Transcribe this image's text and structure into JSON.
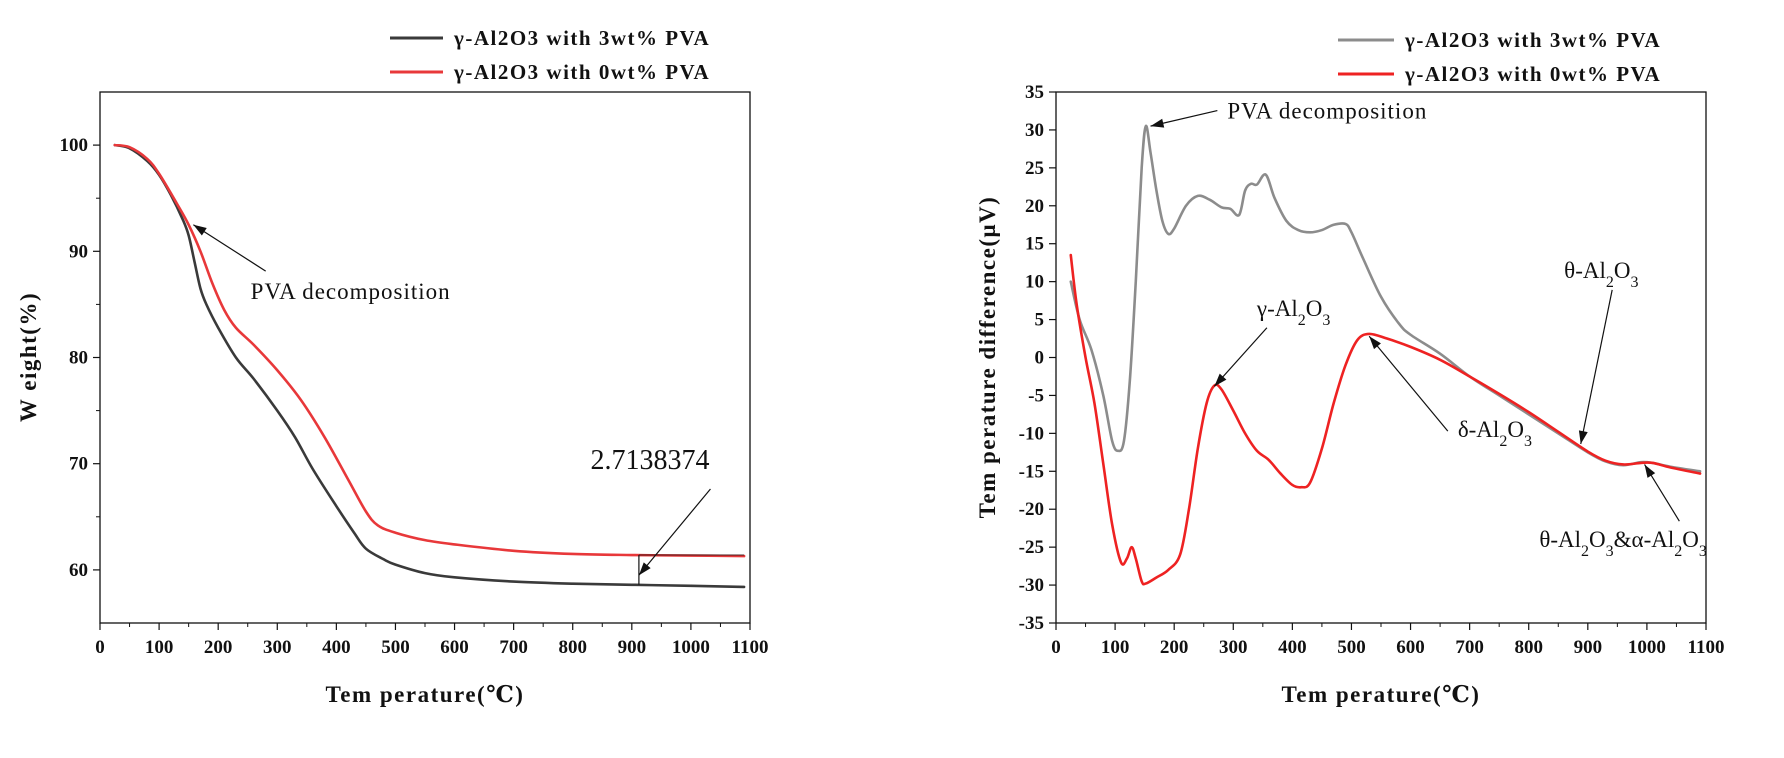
{
  "chart_data": [
    {
      "type": "line",
      "xlabel": "Tem perature(℃)",
      "ylabel": "W eight(%)",
      "xlim": [
        0,
        1100
      ],
      "ylim": [
        55,
        105
      ],
      "xticks": [
        0,
        100,
        200,
        300,
        400,
        500,
        600,
        700,
        800,
        900,
        1000,
        1100
      ],
      "yticks": [
        60,
        70,
        80,
        90,
        100
      ],
      "legend_position": "top-right (outside plot)",
      "grid": false,
      "series": [
        {
          "name": "γ-Al2O3 with 3wt% PVA",
          "color": "#3a3a3a",
          "points": [
            [
              25,
              100
            ],
            [
              50,
              99.7
            ],
            [
              80,
              98.5
            ],
            [
              100,
              97.2
            ],
            [
              120,
              95.3
            ],
            [
              140,
              93
            ],
            [
              150,
              91.5
            ],
            [
              160,
              89
            ],
            [
              170,
              86.5
            ],
            [
              180,
              85
            ],
            [
              200,
              82.8
            ],
            [
              230,
              80
            ],
            [
              260,
              78
            ],
            [
              300,
              75
            ],
            [
              330,
              72.5
            ],
            [
              360,
              69.5
            ],
            [
              400,
              66
            ],
            [
              430,
              63.5
            ],
            [
              450,
              62
            ],
            [
              480,
              61
            ],
            [
              500,
              60.5
            ],
            [
              550,
              59.7
            ],
            [
              600,
              59.3
            ],
            [
              700,
              58.9
            ],
            [
              800,
              58.7
            ],
            [
              900,
              58.6
            ],
            [
              1000,
              58.5
            ],
            [
              1090,
              58.4
            ]
          ]
        },
        {
          "name": "γ-Al2O3 with 0wt% PVA",
          "color": "#e8383a",
          "points": [
            [
              25,
              100
            ],
            [
              50,
              99.8
            ],
            [
              80,
              98.7
            ],
            [
              100,
              97.3
            ],
            [
              130,
              94.5
            ],
            [
              150,
              92.5
            ],
            [
              170,
              90
            ],
            [
              190,
              87
            ],
            [
              210,
              84.5
            ],
            [
              230,
              82.8
            ],
            [
              260,
              81.2
            ],
            [
              300,
              78.8
            ],
            [
              340,
              76
            ],
            [
              380,
              72.5
            ],
            [
              420,
              68.5
            ],
            [
              450,
              65.5
            ],
            [
              470,
              64.2
            ],
            [
              500,
              63.5
            ],
            [
              550,
              62.8
            ],
            [
              600,
              62.4
            ],
            [
              700,
              61.8
            ],
            [
              800,
              61.5
            ],
            [
              900,
              61.4
            ],
            [
              1000,
              61.35
            ],
            [
              1090,
              61.3
            ]
          ]
        }
      ],
      "annotations": [
        {
          "text": "PVA decomposition",
          "x": 255,
          "y": 85.5,
          "arrow_to": [
            158,
            92.5
          ]
        },
        {
          "text": "2.7138374",
          "x": 830,
          "y": 69.5,
          "arrow_to": [
            912,
            59.5
          ],
          "bracket_x": 912,
          "bracket_y": [
            58.6,
            61.4
          ]
        }
      ]
    },
    {
      "type": "line",
      "xlabel": "Tem perature(℃)",
      "ylabel": "Tem perature difference(μV)",
      "xlim": [
        0,
        1100
      ],
      "ylim": [
        -35,
        35
      ],
      "xticks": [
        0,
        100,
        200,
        300,
        400,
        500,
        600,
        700,
        800,
        900,
        1000,
        1100
      ],
      "yticks": [
        -35,
        -30,
        -25,
        -20,
        -15,
        -10,
        -5,
        0,
        5,
        10,
        15,
        20,
        25,
        30,
        35
      ],
      "legend_position": "top-right (outside plot)",
      "grid": false,
      "series": [
        {
          "name": "γ-Al2O3 with 3wt% PVA",
          "color": "#8c8c8c",
          "points": [
            [
              25,
              10
            ],
            [
              40,
              5
            ],
            [
              60,
              1
            ],
            [
              80,
              -5
            ],
            [
              95,
              -11
            ],
            [
              105,
              -12.3
            ],
            [
              115,
              -11
            ],
            [
              125,
              -3
            ],
            [
              135,
              10
            ],
            [
              145,
              25
            ],
            [
              152,
              30.5
            ],
            [
              160,
              27
            ],
            [
              170,
              22
            ],
            [
              180,
              18
            ],
            [
              190,
              16.3
            ],
            [
              200,
              17
            ],
            [
              220,
              20
            ],
            [
              240,
              21.3
            ],
            [
              260,
              20.8
            ],
            [
              280,
              19.8
            ],
            [
              295,
              19.6
            ],
            [
              310,
              18.8
            ],
            [
              320,
              22
            ],
            [
              330,
              22.9
            ],
            [
              340,
              22.8
            ],
            [
              355,
              24.1
            ],
            [
              370,
              21
            ],
            [
              390,
              18
            ],
            [
              410,
              16.8
            ],
            [
              430,
              16.5
            ],
            [
              450,
              16.8
            ],
            [
              470,
              17.5
            ],
            [
              490,
              17.6
            ],
            [
              500,
              16.5
            ],
            [
              520,
              13
            ],
            [
              550,
              8
            ],
            [
              580,
              4.5
            ],
            [
              600,
              3
            ],
            [
              650,
              0.5
            ],
            [
              700,
              -2.5
            ],
            [
              750,
              -5
            ],
            [
              800,
              -7.5
            ],
            [
              850,
              -10
            ],
            [
              900,
              -12.5
            ],
            [
              930,
              -13.7
            ],
            [
              960,
              -14.2
            ],
            [
              990,
              -13.8
            ],
            [
              1010,
              -13.9
            ],
            [
              1040,
              -14.4
            ],
            [
              1090,
              -15
            ]
          ]
        },
        {
          "name": "γ-Al2O3 with 0wt% PVA",
          "color": "#ee2222",
          "points": [
            [
              25,
              13.5
            ],
            [
              35,
              7
            ],
            [
              50,
              0
            ],
            [
              65,
              -6
            ],
            [
              80,
              -14
            ],
            [
              95,
              -22
            ],
            [
              110,
              -27
            ],
            [
              120,
              -26.5
            ],
            [
              128,
              -25
            ],
            [
              135,
              -26.5
            ],
            [
              145,
              -29.5
            ],
            [
              152,
              -29.8
            ],
            [
              170,
              -29
            ],
            [
              190,
              -28
            ],
            [
              210,
              -26
            ],
            [
              225,
              -20
            ],
            [
              240,
              -12
            ],
            [
              255,
              -6
            ],
            [
              268,
              -3.7
            ],
            [
              280,
              -4.2
            ],
            [
              300,
              -7
            ],
            [
              320,
              -10
            ],
            [
              340,
              -12.3
            ],
            [
              360,
              -13.5
            ],
            [
              380,
              -15.3
            ],
            [
              400,
              -16.8
            ],
            [
              415,
              -17.1
            ],
            [
              430,
              -16.5
            ],
            [
              450,
              -12
            ],
            [
              470,
              -6
            ],
            [
              490,
              -1
            ],
            [
              510,
              2.3
            ],
            [
              530,
              3.1
            ],
            [
              560,
              2.5
            ],
            [
              600,
              1.4
            ],
            [
              650,
              -0.3
            ],
            [
              700,
              -2.5
            ],
            [
              750,
              -4.8
            ],
            [
              800,
              -7.2
            ],
            [
              850,
              -9.8
            ],
            [
              900,
              -12.4
            ],
            [
              930,
              -13.6
            ],
            [
              960,
              -14.1
            ],
            [
              990,
              -13.9
            ],
            [
              1010,
              -13.9
            ],
            [
              1040,
              -14.5
            ],
            [
              1090,
              -15.3
            ]
          ]
        }
      ],
      "annotations": [
        {
          "text": "PVA decomposition",
          "x": 290,
          "y": 31.5,
          "arrow_to": [
            160,
            30.5
          ]
        },
        {
          "text_parts": [
            "γ-Al",
            "2",
            "O",
            "3"
          ],
          "x": 340,
          "y": 5.5,
          "arrow_to": [
            268,
            -3.8
          ]
        },
        {
          "text_parts": [
            "δ-Al",
            "2",
            "O",
            "3"
          ],
          "x": 680,
          "y": -10.5,
          "arrow_to": [
            530,
            2.8
          ]
        },
        {
          "text_parts": [
            "θ-Al",
            "2",
            "O",
            "3"
          ],
          "x": 860,
          "y": 10.5,
          "arrow_to": [
            888,
            -11.4
          ]
        },
        {
          "text_parts": [
            "θ-Al",
            "2",
            "O",
            "3",
            "&α-Al",
            "2",
            "O",
            "3"
          ],
          "x": 818,
          "y": -25,
          "arrow_to": [
            996,
            -14.1
          ]
        }
      ]
    }
  ]
}
